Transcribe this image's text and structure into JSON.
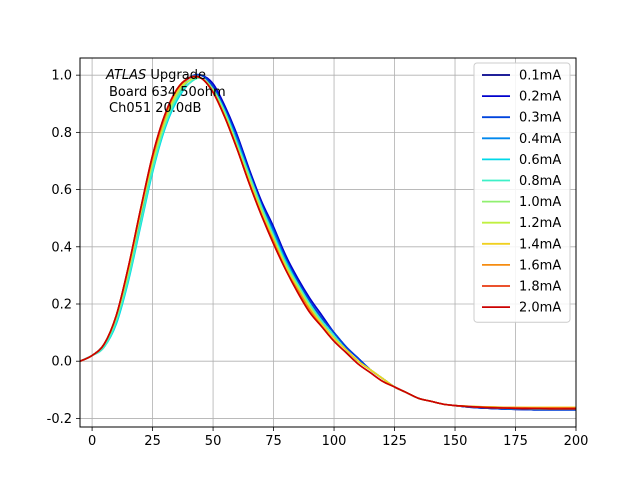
{
  "chart_data": {
    "type": "line",
    "title": "",
    "xlabel": "",
    "ylabel": "",
    "xlim": [
      -5,
      200
    ],
    "ylim": [
      -0.23,
      1.06
    ],
    "grid": true,
    "legend_position": "top-right",
    "x_ticks": [
      0,
      25,
      50,
      75,
      100,
      125,
      150,
      175,
      200
    ],
    "y_ticks": [
      -0.2,
      0.0,
      0.2,
      0.4,
      0.6,
      0.8,
      1.0
    ],
    "annotation": {
      "line1_italic": "ATLAS",
      "line1_rest": " Upgrade",
      "line2": "Board 634 50ohm",
      "line3": "Ch051 20.0dB"
    },
    "x": [
      -5,
      0,
      5,
      10,
      15,
      20,
      25,
      30,
      35,
      40,
      45,
      50,
      55,
      60,
      65,
      70,
      75,
      80,
      85,
      90,
      95,
      100,
      105,
      110,
      115,
      120,
      125,
      130,
      135,
      140,
      145,
      150,
      155,
      160,
      165,
      170,
      175,
      180,
      185,
      190,
      195,
      200
    ],
    "series": [
      {
        "name": "0.1mA",
        "color": "#00008b",
        "values": [
          0.0,
          0.02,
          0.06,
          0.16,
          0.32,
          0.52,
          0.7,
          0.84,
          0.94,
          0.99,
          1.0,
          0.96,
          0.88,
          0.77,
          0.66,
          0.55,
          0.46,
          0.37,
          0.28,
          0.21,
          0.15,
          0.1,
          0.05,
          0.01,
          -0.03,
          -0.06,
          -0.09,
          -0.11,
          -0.13,
          -0.14,
          -0.15,
          -0.155,
          -0.16,
          -0.163,
          -0.165,
          -0.167,
          -0.168,
          -0.169,
          -0.17,
          -0.17,
          -0.17,
          -0.17
        ]
      },
      {
        "name": "0.2mA",
        "color": "#0000cd",
        "values": [
          0.0,
          0.02,
          0.06,
          0.15,
          0.31,
          0.51,
          0.69,
          0.84,
          0.94,
          0.99,
          1.0,
          0.97,
          0.89,
          0.79,
          0.67,
          0.56,
          0.47,
          0.37,
          0.29,
          0.22,
          0.16,
          0.1,
          0.05,
          0.01,
          -0.03,
          -0.06,
          -0.09,
          -0.11,
          -0.13,
          -0.14,
          -0.15,
          -0.155,
          -0.16,
          -0.163,
          -0.165,
          -0.167,
          -0.168,
          -0.169,
          -0.17,
          -0.17,
          -0.17,
          -0.17
        ]
      },
      {
        "name": "0.3mA",
        "color": "#0044dd",
        "values": [
          0.0,
          0.02,
          0.06,
          0.15,
          0.3,
          0.5,
          0.68,
          0.83,
          0.93,
          0.99,
          1.0,
          0.96,
          0.88,
          0.78,
          0.66,
          0.55,
          0.46,
          0.36,
          0.28,
          0.21,
          0.15,
          0.1,
          0.05,
          0.01,
          -0.03,
          -0.06,
          -0.09,
          -0.11,
          -0.13,
          -0.14,
          -0.15,
          -0.155,
          -0.16,
          -0.163,
          -0.165,
          -0.167,
          -0.168,
          -0.169,
          -0.17,
          -0.17,
          -0.17,
          -0.17
        ]
      },
      {
        "name": "0.4mA",
        "color": "#0088ee",
        "values": [
          0.0,
          0.02,
          0.05,
          0.14,
          0.29,
          0.49,
          0.67,
          0.82,
          0.92,
          0.98,
          0.99,
          0.95,
          0.87,
          0.77,
          0.65,
          0.54,
          0.45,
          0.35,
          0.27,
          0.2,
          0.14,
          0.09,
          0.04,
          0.0,
          -0.03,
          -0.06,
          -0.09,
          -0.11,
          -0.13,
          -0.14,
          -0.15,
          -0.155,
          -0.158,
          -0.16,
          -0.163,
          -0.165,
          -0.166,
          -0.167,
          -0.168,
          -0.168,
          -0.168,
          -0.168
        ]
      },
      {
        "name": "0.6mA",
        "color": "#00d8e8",
        "values": [
          0.0,
          0.02,
          0.05,
          0.13,
          0.28,
          0.47,
          0.66,
          0.81,
          0.91,
          0.97,
          0.99,
          0.95,
          0.87,
          0.76,
          0.65,
          0.54,
          0.44,
          0.35,
          0.27,
          0.2,
          0.14,
          0.09,
          0.04,
          0.0,
          -0.03,
          -0.06,
          -0.09,
          -0.11,
          -0.13,
          -0.14,
          -0.15,
          -0.155,
          -0.158,
          -0.16,
          -0.162,
          -0.164,
          -0.165,
          -0.166,
          -0.167,
          -0.167,
          -0.167,
          -0.167
        ]
      },
      {
        "name": "0.8mA",
        "color": "#3ef0c8",
        "values": [
          0.0,
          0.02,
          0.05,
          0.14,
          0.29,
          0.48,
          0.67,
          0.82,
          0.92,
          0.97,
          0.99,
          0.95,
          0.87,
          0.76,
          0.65,
          0.54,
          0.44,
          0.34,
          0.27,
          0.2,
          0.14,
          0.09,
          0.04,
          0.0,
          -0.03,
          -0.06,
          -0.09,
          -0.11,
          -0.13,
          -0.14,
          -0.15,
          -0.155,
          -0.158,
          -0.16,
          -0.162,
          -0.164,
          -0.165,
          -0.166,
          -0.166,
          -0.166,
          -0.166,
          -0.166
        ]
      },
      {
        "name": "1.0mA",
        "color": "#90f070",
        "values": [
          0.0,
          0.02,
          0.06,
          0.15,
          0.31,
          0.51,
          0.69,
          0.83,
          0.93,
          0.98,
          0.99,
          0.95,
          0.86,
          0.75,
          0.64,
          0.53,
          0.43,
          0.34,
          0.26,
          0.19,
          0.13,
          0.08,
          0.04,
          0.0,
          -0.03,
          -0.06,
          -0.09,
          -0.11,
          -0.13,
          -0.14,
          -0.15,
          -0.155,
          -0.158,
          -0.16,
          -0.161,
          -0.162,
          -0.163,
          -0.164,
          -0.164,
          -0.164,
          -0.164,
          -0.164
        ]
      },
      {
        "name": "1.2mA",
        "color": "#c0f040",
        "values": [
          0.0,
          0.02,
          0.06,
          0.16,
          0.32,
          0.52,
          0.7,
          0.84,
          0.94,
          0.98,
          0.99,
          0.94,
          0.86,
          0.75,
          0.63,
          0.52,
          0.43,
          0.33,
          0.26,
          0.19,
          0.13,
          0.08,
          0.04,
          0.0,
          -0.03,
          -0.06,
          -0.09,
          -0.11,
          -0.13,
          -0.14,
          -0.15,
          -0.155,
          -0.157,
          -0.159,
          -0.16,
          -0.161,
          -0.162,
          -0.162,
          -0.162,
          -0.162,
          -0.162,
          -0.162
        ]
      },
      {
        "name": "1.4mA",
        "color": "#f0d020",
        "values": [
          0.0,
          0.02,
          0.06,
          0.16,
          0.32,
          0.52,
          0.71,
          0.85,
          0.94,
          0.99,
          0.99,
          0.94,
          0.85,
          0.74,
          0.63,
          0.52,
          0.42,
          0.33,
          0.25,
          0.18,
          0.13,
          0.08,
          0.04,
          0.0,
          -0.03,
          -0.06,
          -0.09,
          -0.11,
          -0.13,
          -0.14,
          -0.15,
          -0.155,
          -0.157,
          -0.159,
          -0.16,
          -0.161,
          -0.161,
          -0.161,
          -0.161,
          -0.161,
          -0.161,
          -0.161
        ]
      },
      {
        "name": "1.6mA",
        "color": "#f58c10",
        "values": [
          0.0,
          0.02,
          0.06,
          0.16,
          0.33,
          0.53,
          0.71,
          0.85,
          0.95,
          0.99,
          0.99,
          0.94,
          0.85,
          0.74,
          0.62,
          0.51,
          0.42,
          0.32,
          0.25,
          0.18,
          0.12,
          0.07,
          0.03,
          -0.01,
          -0.04,
          -0.07,
          -0.09,
          -0.11,
          -0.13,
          -0.14,
          -0.15,
          -0.155,
          -0.158,
          -0.16,
          -0.161,
          -0.162,
          -0.162,
          -0.163,
          -0.163,
          -0.163,
          -0.163,
          -0.163
        ]
      },
      {
        "name": "1.8mA",
        "color": "#e83a10",
        "values": [
          0.0,
          0.02,
          0.06,
          0.16,
          0.33,
          0.53,
          0.72,
          0.86,
          0.95,
          0.99,
          0.99,
          0.94,
          0.85,
          0.74,
          0.62,
          0.51,
          0.41,
          0.32,
          0.24,
          0.17,
          0.12,
          0.07,
          0.03,
          -0.01,
          -0.04,
          -0.07,
          -0.09,
          -0.11,
          -0.13,
          -0.14,
          -0.15,
          -0.155,
          -0.158,
          -0.16,
          -0.162,
          -0.163,
          -0.164,
          -0.164,
          -0.165,
          -0.165,
          -0.165,
          -0.165
        ]
      },
      {
        "name": "2.0mA",
        "color": "#cc0000",
        "values": [
          0.0,
          0.02,
          0.06,
          0.16,
          0.33,
          0.53,
          0.72,
          0.86,
          0.95,
          0.99,
          0.99,
          0.94,
          0.85,
          0.74,
          0.62,
          0.51,
          0.41,
          0.32,
          0.24,
          0.17,
          0.12,
          0.07,
          0.03,
          -0.01,
          -0.04,
          -0.07,
          -0.09,
          -0.11,
          -0.13,
          -0.14,
          -0.15,
          -0.155,
          -0.158,
          -0.161,
          -0.163,
          -0.164,
          -0.165,
          -0.166,
          -0.166,
          -0.167,
          -0.167,
          -0.167
        ]
      }
    ]
  }
}
